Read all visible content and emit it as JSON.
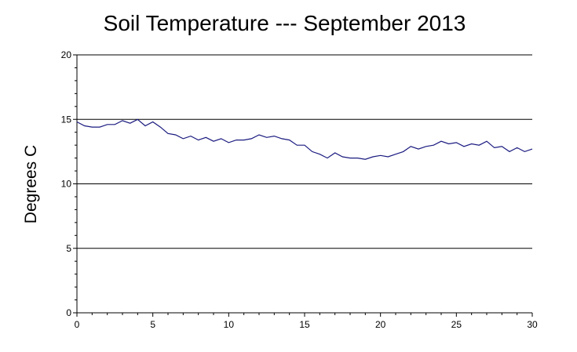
{
  "chart_data": {
    "type": "line",
    "title": "Soil Temperature --- September 2013",
    "xlabel": "",
    "ylabel": "Degrees C",
    "xlim": [
      0,
      30
    ],
    "ylim": [
      0,
      20
    ],
    "xticks": [
      0,
      5,
      10,
      15,
      20,
      25,
      30
    ],
    "yticks": [
      0,
      5,
      10,
      15,
      20
    ],
    "grid": "horizontal",
    "line_color": "#1a1a80",
    "series": [
      {
        "x": [
          0,
          0.5,
          1,
          1.5,
          2,
          2.5,
          3,
          3.5,
          4,
          4.5,
          5,
          5.5,
          6,
          6.5,
          7,
          7.5,
          8,
          8.5,
          9,
          9.5,
          10,
          10.5,
          11,
          11.5,
          12,
          12.5,
          13,
          13.5,
          14,
          14.5,
          15,
          15.5,
          16,
          16.5,
          17,
          17.5,
          18,
          18.5,
          19,
          19.5,
          20,
          20.5,
          21,
          21.5,
          22,
          22.5,
          23,
          23.5,
          24,
          24.5,
          25,
          25.5,
          26,
          26.5,
          27,
          27.5,
          28,
          28.5,
          29,
          29.5,
          30
        ],
        "y": [
          14.8,
          14.5,
          14.4,
          14.4,
          14.6,
          14.6,
          14.9,
          14.7,
          15.0,
          14.5,
          14.8,
          14.4,
          13.9,
          13.8,
          13.5,
          13.7,
          13.4,
          13.6,
          13.3,
          13.5,
          13.2,
          13.4,
          13.4,
          13.5,
          13.8,
          13.6,
          13.7,
          13.5,
          13.4,
          13.0,
          13.0,
          12.5,
          12.3,
          12.0,
          12.4,
          12.1,
          12.0,
          12.0,
          11.9,
          12.1,
          12.2,
          12.1,
          12.3,
          12.5,
          12.9,
          12.7,
          12.9,
          13.0,
          13.3,
          13.1,
          13.2,
          12.9,
          13.1,
          13.0,
          13.3,
          12.8,
          12.9,
          12.5,
          12.8,
          12.5,
          12.7
        ]
      }
    ]
  }
}
